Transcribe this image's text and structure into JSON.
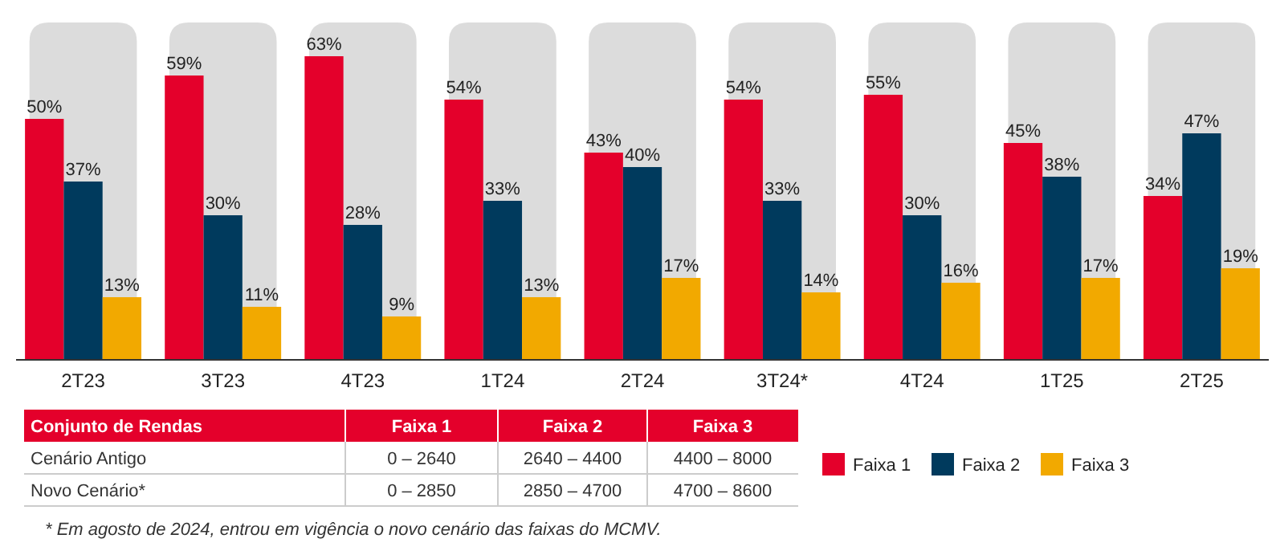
{
  "chart_data": {
    "type": "bar",
    "categories": [
      "2T23",
      "3T23",
      "4T23",
      "1T24",
      "2T24",
      "3T24*",
      "4T24",
      "1T25",
      "2T25"
    ],
    "series": [
      {
        "name": "Faixa 1",
        "color": "#e4002b",
        "values": [
          50,
          59,
          63,
          54,
          43,
          54,
          55,
          45,
          34
        ],
        "value_labels": [
          "50%",
          "59%",
          "63%",
          "54%",
          "43%",
          "54%",
          "55%",
          "45%",
          "34%"
        ]
      },
      {
        "name": "Faixa 2",
        "color": "#003a5d",
        "values": [
          37,
          30,
          28,
          33,
          40,
          33,
          30,
          38,
          47
        ],
        "value_labels": [
          "37%",
          "30%",
          "28%",
          "33%",
          "40%",
          "33%",
          "30%",
          "38%",
          "47%"
        ]
      },
      {
        "name": "Faixa 3",
        "color": "#f2a900",
        "values": [
          13,
          11,
          9,
          13,
          17,
          14,
          16,
          17,
          19
        ],
        "value_labels": [
          "13%",
          "11%",
          "9%",
          "13%",
          "17%",
          "14%",
          "16%",
          "17%",
          "19%"
        ]
      }
    ],
    "ylim": [
      0,
      70
    ],
    "legend": "bottom",
    "bands": [
      {
        "axis": "x",
        "from": "2T23",
        "to": "2T23",
        "color": "#dcdcdc"
      },
      {
        "axis": "x",
        "from": "3T23",
        "to": "3T23",
        "color": "#dcdcdc"
      },
      {
        "axis": "x",
        "from": "4T23",
        "to": "4T23",
        "color": "#dcdcdc"
      },
      {
        "axis": "x",
        "from": "1T24",
        "to": "1T24",
        "color": "#dcdcdc"
      },
      {
        "axis": "x",
        "from": "2T24",
        "to": "2T24",
        "color": "#dcdcdc"
      },
      {
        "axis": "x",
        "from": "3T24*",
        "to": "3T24*",
        "color": "#dcdcdc"
      },
      {
        "axis": "x",
        "from": "4T24",
        "to": "4T24",
        "color": "#dcdcdc"
      },
      {
        "axis": "x",
        "from": "1T25",
        "to": "1T25",
        "color": "#dcdcdc"
      },
      {
        "axis": "x",
        "from": "2T25",
        "to": "2T25",
        "color": "#dcdcdc"
      }
    ],
    "annotations": [
      "Conjunto de Rendas",
      "Faixa 1",
      "Faixa 2",
      "Faixa 3",
      "Cenário Antigo",
      "0 – 2640",
      "2640 – 4400",
      "4400 – 8000",
      "Novo Cenário*",
      "0 – 2850",
      "2850 – 4700",
      "4700 – 8600",
      "* Em agosto de 2024, entrou em vigência o novo cenário das faixas do MCMV."
    ]
  }
}
